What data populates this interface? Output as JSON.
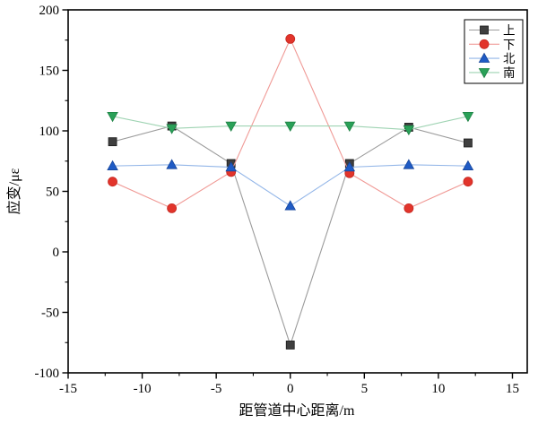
{
  "chart_data": {
    "type": "line",
    "title": "",
    "xlabel": "距管道中心距离/m",
    "ylabel": "应变/με",
    "xlim": [
      -15,
      16
    ],
    "ylim": [
      -100,
      200
    ],
    "grid": false,
    "legend_position": "top-right",
    "x_major_ticks": [
      -15,
      -10,
      -5,
      0,
      5,
      10,
      15
    ],
    "x_tick_labels": [
      "-15",
      "-10",
      "-5",
      "0",
      "5",
      "10",
      "15"
    ],
    "x_minor_step": 2.5,
    "y_major_ticks": [
      -100,
      -50,
      0,
      50,
      100,
      150,
      200
    ],
    "y_tick_labels": [
      "-100",
      "-50",
      "0",
      "50",
      "100",
      "150",
      "200"
    ],
    "y_minor_step": 25,
    "x": [
      -12,
      -8,
      -4,
      0,
      4,
      8,
      12
    ],
    "series": [
      {
        "id": "up",
        "name": "上",
        "marker": "square",
        "marker_color": "#3f3f3f",
        "marker_edge": "#1a1a1a",
        "line_color": "#9b9b9b",
        "values": [
          91,
          104,
          73,
          -77,
          73,
          103,
          90
        ]
      },
      {
        "id": "down",
        "name": "下",
        "marker": "circle",
        "marker_color": "#e2342b",
        "marker_edge": "#c62820",
        "line_color": "#f09a96",
        "values": [
          58,
          36,
          66,
          176,
          65,
          36,
          58
        ]
      },
      {
        "id": "north",
        "name": "北",
        "marker": "triangle-up",
        "marker_color": "#1f5bc5",
        "marker_edge": "#16459a",
        "line_color": "#93b6e8",
        "values": [
          71,
          72,
          70,
          38,
          70,
          72,
          71
        ]
      },
      {
        "id": "south",
        "name": "南",
        "marker": "triangle-down",
        "marker_color": "#2aa158",
        "marker_edge": "#1e8245",
        "line_color": "#9ed3b2",
        "values": [
          112,
          102,
          104,
          104,
          104,
          101,
          112
        ]
      }
    ]
  },
  "colors": {
    "background": "#ffffff",
    "axis": "#000000",
    "text": "#000000",
    "legend_border": "#000000",
    "legend_background": "#ffffff"
  }
}
